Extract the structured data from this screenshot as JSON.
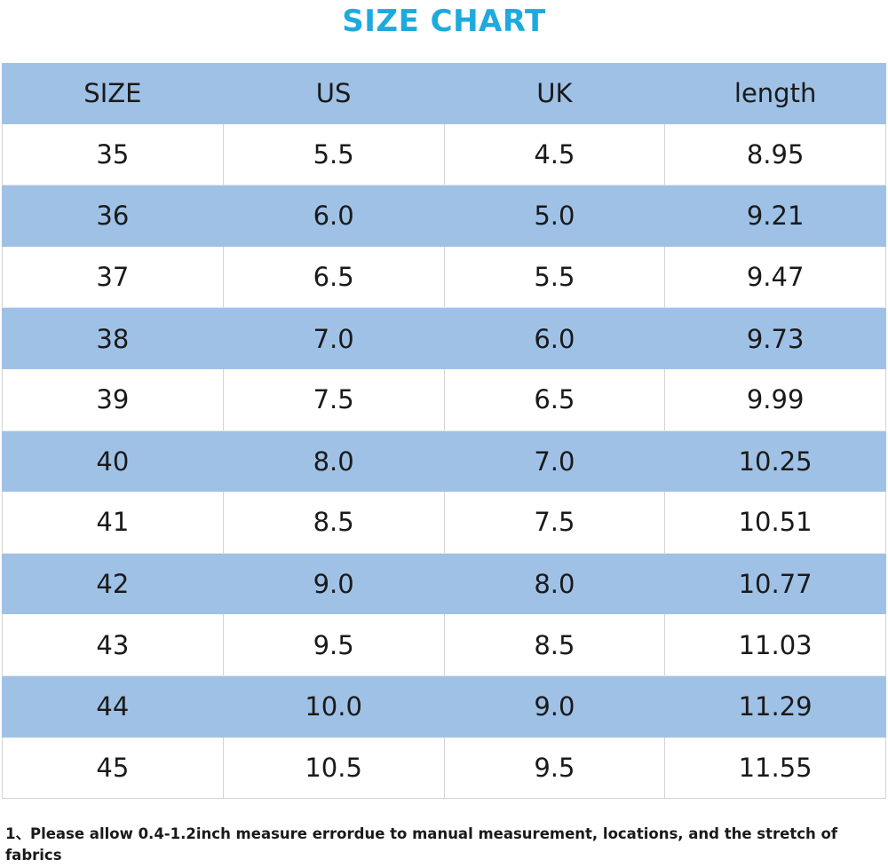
{
  "title": "SIZE CHART",
  "columns": [
    "SIZE",
    "US",
    "UK",
    "length"
  ],
  "rows": [
    [
      "35",
      "5.5",
      "4.5",
      "8.95"
    ],
    [
      "36",
      "6.0",
      "5.0",
      "9.21"
    ],
    [
      "37",
      "6.5",
      "5.5",
      "9.47"
    ],
    [
      "38",
      "7.0",
      "6.0",
      "9.73"
    ],
    [
      "39",
      "7.5",
      "6.5",
      "9.99"
    ],
    [
      "40",
      "8.0",
      "7.0",
      "10.25"
    ],
    [
      "41",
      "8.5",
      "7.5",
      "10.51"
    ],
    [
      "42",
      "9.0",
      "8.0",
      "10.77"
    ],
    [
      "43",
      "9.5",
      "8.5",
      "11.03"
    ],
    [
      "44",
      "10.0",
      "9.0",
      "11.29"
    ],
    [
      "45",
      "10.5",
      "9.5",
      "11.55"
    ]
  ],
  "note": "1、Please allow 0.4-1.2inch measure errordue to manual measurement, locations, and the stretch of fabrics",
  "colors": {
    "title": "#1eaadf",
    "band": "#9fc1e6",
    "text": "#1a1a1a"
  }
}
